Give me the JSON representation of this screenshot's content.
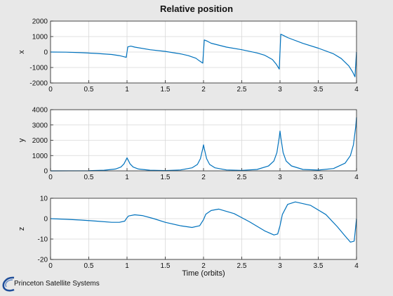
{
  "figure": {
    "title": "Relative position",
    "background": "#e8e8e8",
    "axes_background": "#ffffff",
    "line_color": "#0072bd",
    "grid_color": "#d8d8d8"
  },
  "logo": {
    "text": "Princeton Satellite Systems",
    "icon": "swoosh-icon",
    "color": "#1f4e9a"
  },
  "chart_data": [
    {
      "type": "line",
      "title": "Relative position",
      "xlabel": "",
      "ylabel": "x",
      "xlim": [
        0,
        4
      ],
      "ylim": [
        -2000,
        2000
      ],
      "xticks": [
        "0",
        "0.5",
        "1",
        "1.5",
        "2",
        "2.5",
        "3",
        "3.5",
        "4"
      ],
      "yticks": [
        "-2000",
        "-1000",
        "0",
        "1000",
        "2000"
      ],
      "grid": true,
      "x": [
        0,
        0.2,
        0.4,
        0.6,
        0.8,
        0.9,
        0.95,
        0.99,
        1.01,
        1.05,
        1.1,
        1.3,
        1.5,
        1.7,
        1.8,
        1.9,
        1.95,
        1.99,
        2.01,
        2.05,
        2.1,
        2.3,
        2.5,
        2.7,
        2.8,
        2.9,
        2.95,
        2.99,
        3.01,
        3.05,
        3.1,
        3.3,
        3.5,
        3.7,
        3.8,
        3.9,
        3.95,
        3.98,
        4.0
      ],
      "series": [
        {
          "values": [
            0,
            -10,
            -40,
            -90,
            -160,
            -230,
            -290,
            -340,
            330,
            380,
            320,
            150,
            40,
            -120,
            -230,
            -400,
            -580,
            -720,
            780,
            700,
            570,
            320,
            150,
            -60,
            -210,
            -480,
            -780,
            -1100,
            1150,
            1060,
            930,
            560,
            250,
            -120,
            -420,
            -900,
            -1300,
            -1600,
            0
          ]
        }
      ]
    },
    {
      "type": "line",
      "xlabel": "",
      "ylabel": "y",
      "xlim": [
        0,
        4
      ],
      "ylim": [
        0,
        4000
      ],
      "xticks": [
        "0",
        "0.5",
        "1",
        "1.5",
        "2",
        "2.5",
        "3",
        "3.5",
        "4"
      ],
      "yticks": [
        "0",
        "1000",
        "2000",
        "3000",
        "4000"
      ],
      "grid": true,
      "x": [
        0,
        0.5,
        0.7,
        0.85,
        0.92,
        0.96,
        0.99,
        1.0,
        1.01,
        1.04,
        1.08,
        1.15,
        1.3,
        1.5,
        1.7,
        1.85,
        1.92,
        1.96,
        1.99,
        2.0,
        2.01,
        2.04,
        2.08,
        2.15,
        2.3,
        2.5,
        2.7,
        2.85,
        2.92,
        2.96,
        2.99,
        3.0,
        3.01,
        3.04,
        3.08,
        3.15,
        3.3,
        3.5,
        3.7,
        3.85,
        3.92,
        3.96,
        3.99,
        4.0
      ],
      "series": [
        {
          "values": [
            0,
            10,
            40,
            120,
            250,
            450,
            750,
            850,
            750,
            450,
            250,
            120,
            40,
            20,
            60,
            200,
            420,
            800,
            1450,
            1700,
            1450,
            800,
            420,
            200,
            60,
            30,
            90,
            320,
            650,
            1200,
            2200,
            2600,
            2200,
            1200,
            650,
            320,
            90,
            50,
            150,
            500,
            1000,
            1700,
            2900,
            3500
          ]
        }
      ]
    },
    {
      "type": "line",
      "xlabel": "Time (orbits)",
      "ylabel": "z",
      "xlim": [
        0,
        4
      ],
      "ylim": [
        -20,
        10
      ],
      "xticks": [
        "0",
        "0.5",
        "1",
        "1.5",
        "2",
        "2.5",
        "3",
        "3.5",
        "4"
      ],
      "yticks": [
        "-20",
        "-10",
        "0",
        "10"
      ],
      "grid": true,
      "x": [
        0,
        0.2,
        0.4,
        0.6,
        0.8,
        0.9,
        0.97,
        1.0,
        1.02,
        1.1,
        1.2,
        1.35,
        1.5,
        1.7,
        1.85,
        1.95,
        2.0,
        2.03,
        2.1,
        2.2,
        2.4,
        2.6,
        2.8,
        2.92,
        2.97,
        3.0,
        3.03,
        3.1,
        3.2,
        3.4,
        3.6,
        3.75,
        3.85,
        3.92,
        3.97,
        4.0
      ],
      "series": [
        {
          "values": [
            0,
            -0.3,
            -0.7,
            -1.2,
            -1.8,
            -1.8,
            -1.2,
            0.5,
            1.3,
            1.9,
            1.5,
            0,
            -1.8,
            -3.5,
            -4.3,
            -3.5,
            -0.5,
            2.2,
            4,
            4.7,
            2.5,
            -1.5,
            -6,
            -8,
            -7.5,
            -3.5,
            2,
            7,
            8.2,
            6.5,
            2,
            -4,
            -8.5,
            -11.5,
            -11,
            0
          ]
        }
      ]
    }
  ]
}
